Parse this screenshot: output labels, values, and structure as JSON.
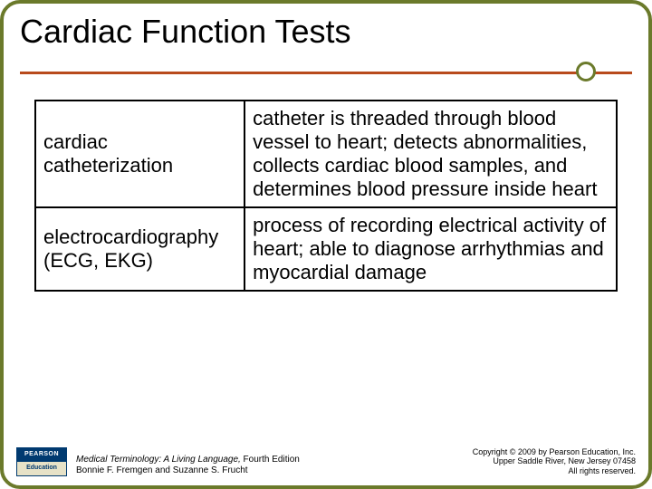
{
  "theme": {
    "border_color": "#6b7a2b",
    "accent_color": "#b84a1c",
    "rule_dot_bg": "#ffffff",
    "rule_dot_border": "#6b7a2b",
    "pearson_top_bg": "#003a70",
    "pearson_bot_bg": "#e7e2c7",
    "pearson_bot_color": "#003a70"
  },
  "title": "Cardiac Function Tests",
  "table": {
    "rows": [
      {
        "term": "cardiac catheterization",
        "definition": "catheter is threaded through blood vessel to heart; detects abnormalities, collects cardiac blood samples, and determines blood pressure inside heart"
      },
      {
        "term": "electrocardiography (ECG, EKG)",
        "definition": "process of recording electrical activity of heart; able to diagnose arrhythmias and myocardial damage"
      }
    ]
  },
  "footer": {
    "pearson_top": "PEARSON",
    "pearson_bot": "Education",
    "ref_title": "Medical Terminology: A Living Language,",
    "ref_edition": " Fourth Edition",
    "ref_authors": "Bonnie F. Fremgen and Suzanne S. Frucht",
    "copy_line1": "Copyright © 2009 by Pearson Education, Inc.",
    "copy_line2": "Upper Saddle River, New Jersey 07458",
    "copy_line3": "All rights reserved."
  }
}
